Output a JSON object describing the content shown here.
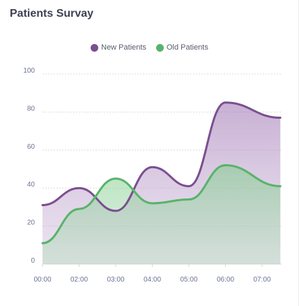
{
  "title": "Patients Survay",
  "colors": {
    "new_patients": "#7a4f8f",
    "old_patients": "#58b36a"
  },
  "chart_data": {
    "type": "area",
    "title": "Patients Survay",
    "x": [
      "00:00",
      "02:00",
      "03:00",
      "04:00",
      "05:00",
      "06:00",
      "07:00"
    ],
    "y_ticks": [
      0,
      20,
      40,
      60,
      80,
      100
    ],
    "ylim": [
      0,
      100
    ],
    "grid": true,
    "legend": "top-center",
    "series": [
      {
        "name": "New Patients",
        "color": "#7a4f8f",
        "points": [
          [
            0,
            31
          ],
          [
            1,
            40
          ],
          [
            2,
            28
          ],
          [
            3,
            51
          ],
          [
            4,
            41
          ],
          [
            5,
            85
          ],
          [
            6.5,
            77
          ]
        ]
      },
      {
        "name": "Old Patients",
        "color": "#58b36a",
        "points": [
          [
            0,
            11
          ],
          [
            1,
            29
          ],
          [
            2,
            45
          ],
          [
            3,
            32
          ],
          [
            4,
            34
          ],
          [
            5,
            52
          ],
          [
            6.5,
            41
          ]
        ]
      }
    ]
  }
}
